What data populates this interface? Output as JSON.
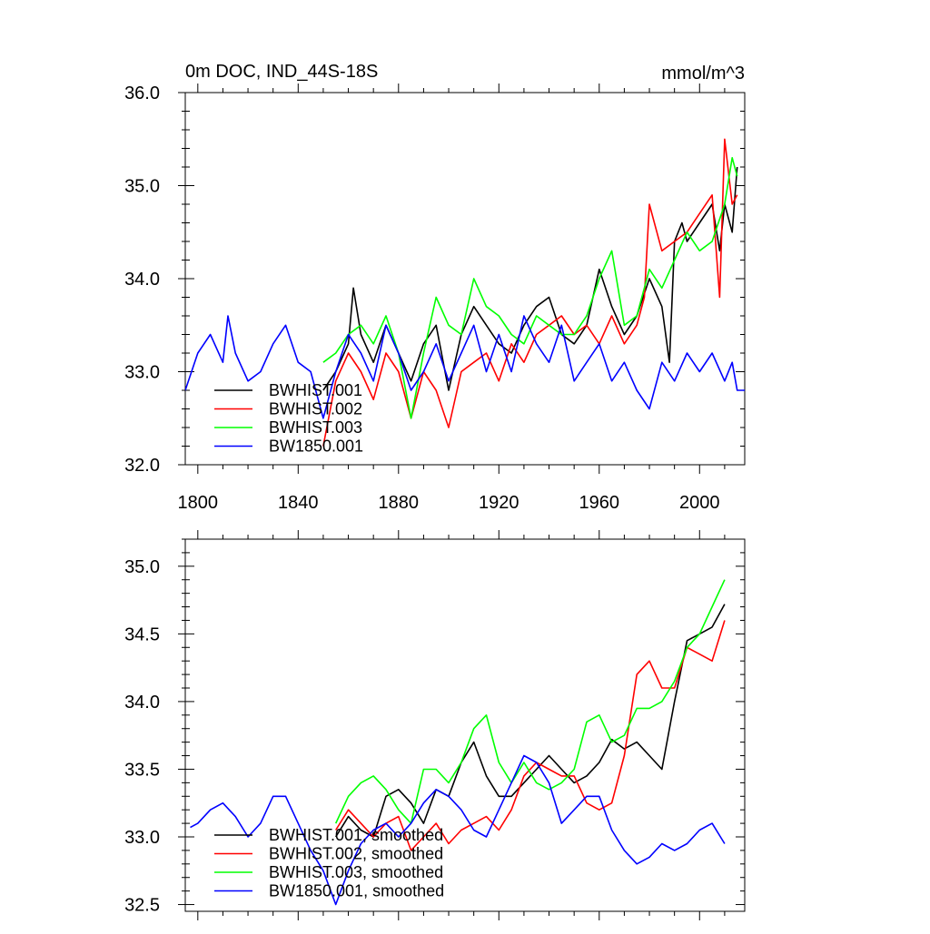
{
  "chart_data": [
    {
      "type": "line",
      "title": "0m DOC, IND_44S-18S",
      "units_label": "mmol/m^3",
      "xlim": [
        1795,
        2018
      ],
      "ylim": [
        32.0,
        36.0
      ],
      "x_ticks": [
        1800,
        1840,
        1880,
        1920,
        1960,
        2000
      ],
      "x_tick_labels": [
        "1800",
        "1840",
        "1880",
        "1920",
        "1960",
        "2000"
      ],
      "y_ticks": [
        32.0,
        33.0,
        34.0,
        35.0,
        36.0
      ],
      "y_tick_labels": [
        "32.0",
        "33.0",
        "34.0",
        "35.0",
        "36.0"
      ],
      "legend_position": "bottom-left",
      "series": [
        {
          "name": "BWHIST.001",
          "color": "#000000",
          "x": [
            1850,
            1855,
            1860,
            1862,
            1865,
            1870,
            1875,
            1880,
            1885,
            1890,
            1895,
            1900,
            1905,
            1910,
            1915,
            1920,
            1925,
            1930,
            1935,
            1940,
            1945,
            1950,
            1955,
            1960,
            1965,
            1970,
            1975,
            1980,
            1985,
            1988,
            1990,
            1993,
            1995,
            2000,
            2005,
            2008,
            2010,
            2013,
            2015
          ],
          "y": [
            32.8,
            33.0,
            33.3,
            33.9,
            33.4,
            33.1,
            33.5,
            33.2,
            32.9,
            33.3,
            33.5,
            32.8,
            33.4,
            33.7,
            33.5,
            33.3,
            33.2,
            33.5,
            33.7,
            33.8,
            33.4,
            33.3,
            33.5,
            34.1,
            33.7,
            33.4,
            33.6,
            34.0,
            33.7,
            33.1,
            34.4,
            34.6,
            34.4,
            34.6,
            34.8,
            34.3,
            34.8,
            34.5,
            35.2
          ]
        },
        {
          "name": "BWHIST.002",
          "color": "#ff0000",
          "x": [
            1850,
            1855,
            1860,
            1865,
            1870,
            1875,
            1880,
            1885,
            1890,
            1895,
            1900,
            1905,
            1910,
            1915,
            1920,
            1925,
            1930,
            1935,
            1940,
            1945,
            1950,
            1955,
            1960,
            1965,
            1970,
            1975,
            1978,
            1980,
            1985,
            1990,
            1995,
            2000,
            2005,
            2008,
            2010,
            2013,
            2015
          ],
          "y": [
            32.2,
            32.9,
            33.2,
            33.0,
            32.7,
            33.2,
            33.0,
            32.5,
            33.0,
            32.8,
            32.4,
            33.0,
            33.1,
            33.2,
            32.9,
            33.3,
            33.1,
            33.4,
            33.5,
            33.6,
            33.4,
            33.5,
            33.3,
            33.6,
            33.3,
            33.5,
            33.8,
            34.8,
            34.3,
            34.4,
            34.5,
            34.7,
            34.9,
            33.8,
            35.5,
            34.8,
            34.9
          ]
        },
        {
          "name": "BWHIST.003",
          "color": "#00ff00",
          "x": [
            1850,
            1855,
            1860,
            1865,
            1870,
            1875,
            1880,
            1885,
            1890,
            1895,
            1900,
            1905,
            1910,
            1915,
            1920,
            1925,
            1930,
            1935,
            1940,
            1945,
            1950,
            1955,
            1960,
            1965,
            1970,
            1975,
            1980,
            1985,
            1990,
            1995,
            2000,
            2005,
            2010,
            2013,
            2015
          ],
          "y": [
            33.1,
            33.2,
            33.4,
            33.5,
            33.3,
            33.6,
            33.2,
            32.5,
            33.2,
            33.8,
            33.5,
            33.4,
            34.0,
            33.7,
            33.6,
            33.4,
            33.3,
            33.6,
            33.5,
            33.4,
            33.4,
            33.6,
            34.0,
            34.3,
            33.5,
            33.6,
            34.1,
            33.9,
            34.2,
            34.5,
            34.3,
            34.4,
            34.8,
            35.3,
            35.1
          ]
        },
        {
          "name": "BW1850.001",
          "color": "#0000ff",
          "x": [
            1795,
            1800,
            1805,
            1810,
            1812,
            1815,
            1820,
            1825,
            1830,
            1835,
            1840,
            1845,
            1850,
            1855,
            1860,
            1865,
            1870,
            1875,
            1880,
            1885,
            1890,
            1895,
            1900,
            1905,
            1910,
            1915,
            1920,
            1925,
            1930,
            1935,
            1940,
            1945,
            1950,
            1955,
            1960,
            1965,
            1970,
            1975,
            1980,
            1985,
            1990,
            1995,
            2000,
            2005,
            2010,
            2013,
            2015,
            2018
          ],
          "y": [
            32.8,
            33.2,
            33.4,
            33.1,
            33.6,
            33.2,
            32.9,
            33.0,
            33.3,
            33.5,
            33.1,
            33.0,
            32.5,
            33.0,
            33.4,
            33.2,
            32.9,
            33.5,
            33.2,
            32.8,
            33.0,
            33.3,
            32.9,
            33.2,
            33.5,
            33.0,
            33.4,
            33.0,
            33.6,
            33.3,
            33.1,
            33.5,
            32.9,
            33.1,
            33.3,
            32.9,
            33.1,
            32.8,
            32.6,
            33.1,
            32.9,
            33.2,
            33.0,
            33.2,
            32.9,
            33.1,
            32.8,
            32.8
          ]
        }
      ]
    },
    {
      "type": "line",
      "xlim": [
        1795,
        2018
      ],
      "ylim": [
        32.45,
        35.2
      ],
      "x_ticks": [
        1800,
        1840,
        1880,
        1920,
        1960,
        2000
      ],
      "y_ticks": [
        32.5,
        33.0,
        33.5,
        34.0,
        34.5,
        35.0
      ],
      "y_tick_labels": [
        "32.5",
        "33.0",
        "33.5",
        "34.0",
        "34.5",
        "35.0"
      ],
      "legend_position": "bottom-left",
      "series": [
        {
          "name": "BWHIST.001, smoothed",
          "color": "#000000",
          "x": [
            1855,
            1860,
            1865,
            1870,
            1875,
            1880,
            1885,
            1890,
            1895,
            1900,
            1905,
            1910,
            1915,
            1920,
            1925,
            1930,
            1935,
            1940,
            1945,
            1950,
            1955,
            1960,
            1965,
            1970,
            1975,
            1980,
            1985,
            1990,
            1995,
            2000,
            2005,
            2010
          ],
          "y": [
            33.0,
            33.15,
            33.05,
            33.0,
            33.3,
            33.35,
            33.25,
            33.1,
            33.35,
            33.3,
            33.55,
            33.7,
            33.45,
            33.3,
            33.3,
            33.4,
            33.5,
            33.6,
            33.5,
            33.4,
            33.45,
            33.55,
            33.72,
            33.65,
            33.7,
            33.6,
            33.5,
            34.0,
            34.45,
            34.5,
            34.55,
            34.72
          ]
        },
        {
          "name": "BWHIST.002, smoothed",
          "color": "#ff0000",
          "x": [
            1855,
            1860,
            1865,
            1870,
            1875,
            1880,
            1885,
            1890,
            1895,
            1900,
            1905,
            1910,
            1915,
            1920,
            1925,
            1930,
            1935,
            1940,
            1945,
            1950,
            1955,
            1960,
            1965,
            1970,
            1975,
            1980,
            1985,
            1990,
            1995,
            2000,
            2005,
            2010
          ],
          "y": [
            33.05,
            33.2,
            33.1,
            33.0,
            33.1,
            33.15,
            32.9,
            33.0,
            33.1,
            32.95,
            33.05,
            33.1,
            33.15,
            33.05,
            33.2,
            33.45,
            33.55,
            33.5,
            33.45,
            33.45,
            33.25,
            33.2,
            33.25,
            33.6,
            34.2,
            34.3,
            34.1,
            34.1,
            34.4,
            34.35,
            34.3,
            34.6
          ]
        },
        {
          "name": "BWHIST.003, smoothed",
          "color": "#00ff00",
          "x": [
            1855,
            1860,
            1865,
            1870,
            1875,
            1880,
            1885,
            1890,
            1895,
            1900,
            1905,
            1910,
            1915,
            1920,
            1925,
            1930,
            1935,
            1940,
            1945,
            1950,
            1955,
            1960,
            1965,
            1970,
            1975,
            1980,
            1985,
            1990,
            1995,
            2000,
            2005,
            2010
          ],
          "y": [
            33.1,
            33.3,
            33.4,
            33.45,
            33.35,
            33.2,
            33.1,
            33.5,
            33.5,
            33.4,
            33.55,
            33.8,
            33.9,
            33.55,
            33.4,
            33.55,
            33.4,
            33.35,
            33.4,
            33.5,
            33.85,
            33.9,
            33.7,
            33.75,
            33.95,
            33.95,
            34.0,
            34.15,
            34.4,
            34.5,
            34.7,
            34.9
          ]
        },
        {
          "name": "BW1850.001, smoothed",
          "color": "#0000ff",
          "x": [
            1797,
            1800,
            1805,
            1810,
            1815,
            1820,
            1825,
            1830,
            1835,
            1840,
            1845,
            1850,
            1855,
            1860,
            1865,
            1870,
            1875,
            1880,
            1885,
            1890,
            1895,
            1900,
            1905,
            1910,
            1915,
            1920,
            1925,
            1930,
            1935,
            1940,
            1945,
            1950,
            1955,
            1960,
            1965,
            1970,
            1975,
            1980,
            1985,
            1990,
            1995,
            2000,
            2005,
            2010
          ],
          "y": [
            33.07,
            33.1,
            33.2,
            33.25,
            33.15,
            33.0,
            33.1,
            33.3,
            33.3,
            33.1,
            32.9,
            32.75,
            32.5,
            32.75,
            32.95,
            33.05,
            33.1,
            33.0,
            33.1,
            33.25,
            33.35,
            33.3,
            33.2,
            33.05,
            33.0,
            33.2,
            33.4,
            33.6,
            33.55,
            33.4,
            33.1,
            33.2,
            33.3,
            33.3,
            33.05,
            32.9,
            32.8,
            32.85,
            32.95,
            32.9,
            32.95,
            33.05,
            33.1,
            32.95
          ]
        }
      ]
    }
  ]
}
